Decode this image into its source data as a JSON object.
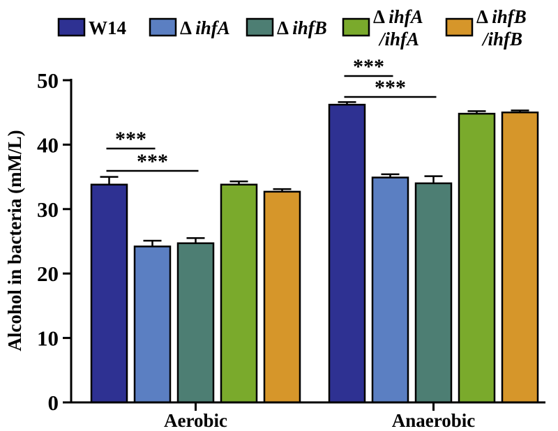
{
  "chart_data": {
    "type": "bar",
    "title": "",
    "ylabel": "Alcohol in bacteria (mM/L)",
    "xlabel": "",
    "ylim": [
      0,
      50
    ],
    "yticks": [
      "0",
      "10",
      "20",
      "30",
      "40",
      "50"
    ],
    "categories": [
      "Aerobic",
      "Anaerobic"
    ],
    "series": [
      {
        "name": "W14",
        "prefix": "",
        "italic": "",
        "suffix": "",
        "color": "#2e3192",
        "values": [
          33.8,
          46.2
        ],
        "errors": [
          1.2,
          0.4
        ]
      },
      {
        "name": "Δ ihfA",
        "prefix": "Δ ",
        "italic": "ihfA",
        "suffix": "",
        "color": "#5b7fc2",
        "values": [
          24.2,
          34.9
        ],
        "errors": [
          0.9,
          0.5
        ]
      },
      {
        "name": "Δ ihfB",
        "prefix": "Δ ",
        "italic": "ihfB",
        "suffix": "",
        "color": "#4d7e73",
        "values": [
          24.7,
          34.0
        ],
        "errors": [
          0.8,
          1.1
        ]
      },
      {
        "name": "Δ ihfA /ihfA",
        "prefix": "Δ ",
        "italic": "ihfA",
        "line2": "/ihfA",
        "color": "#7aaa2c",
        "values": [
          33.8,
          44.8
        ],
        "errors": [
          0.5,
          0.4
        ]
      },
      {
        "name": "Δ ihfB /ihfB",
        "prefix": "Δ ",
        "italic": "ihfB",
        "line2": "/ihfB",
        "color": "#d6962a",
        "values": [
          32.7,
          45.0
        ],
        "errors": [
          0.4,
          0.3
        ]
      }
    ],
    "significance": [
      {
        "category": 0,
        "from": 0,
        "to": 1,
        "label": "***"
      },
      {
        "category": 0,
        "from": 0,
        "to": 2,
        "label": "***"
      },
      {
        "category": 1,
        "from": 0,
        "to": 1,
        "label": "***"
      },
      {
        "category": 1,
        "from": 0,
        "to": 2,
        "label": "***"
      }
    ]
  }
}
